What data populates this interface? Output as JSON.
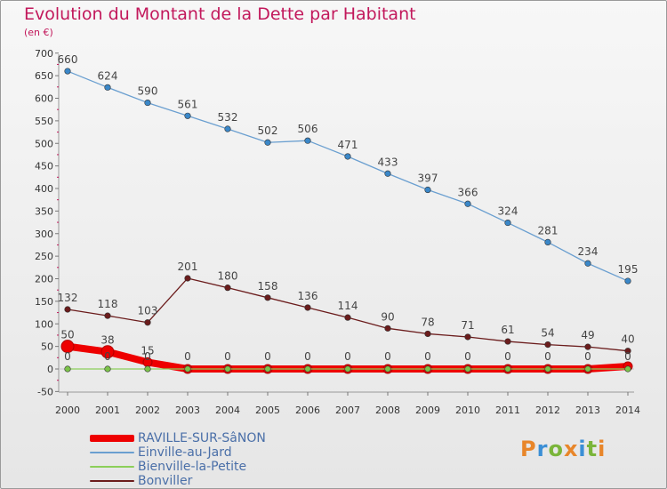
{
  "title": "Evolution du Montant de la Dette par Habitant",
  "unit": "(en €)",
  "logo_text": "Proxiti",
  "chart_data": {
    "type": "line",
    "title": "Evolution du Montant de la Dette par Habitant",
    "ylabel": "(en €)",
    "xlabel": "",
    "x": [
      "2000",
      "2001",
      "2002",
      "2003",
      "2004",
      "2005",
      "2006",
      "2007",
      "2008",
      "2009",
      "2010",
      "2011",
      "2012",
      "2013",
      "2014"
    ],
    "ylim": [
      -50,
      700
    ],
    "yticks": [
      -50,
      0,
      50,
      100,
      150,
      200,
      250,
      300,
      350,
      400,
      450,
      500,
      550,
      600,
      650,
      700
    ],
    "grid": false,
    "legend_position": "bottom-left",
    "series": [
      {
        "name": "RAVILLE-SUR-SâNON",
        "color": "#ee0000",
        "marker_color": "#ee0000",
        "thick": true,
        "values": [
          50,
          38,
          15,
          0,
          0,
          0,
          0,
          0,
          0,
          0,
          0,
          0,
          0,
          0,
          6
        ],
        "labels": [
          "50",
          "38",
          "15",
          "",
          "",
          "",
          "",
          "",
          "",
          "",
          "",
          "",
          "",
          "",
          ""
        ]
      },
      {
        "name": "Einville-au-Jard",
        "color": "#6a9fd0",
        "marker_color": "#3a87c8",
        "thick": false,
        "values": [
          660,
          624,
          590,
          561,
          532,
          502,
          506,
          471,
          433,
          397,
          366,
          324,
          281,
          234,
          195
        ],
        "labels": [
          "660",
          "624",
          "590",
          "561",
          "532",
          "502",
          "506",
          "471",
          "433",
          "397",
          "366",
          "324",
          "281",
          "234",
          "195"
        ]
      },
      {
        "name": "Bienville-la-Petite",
        "color": "#8ccf5a",
        "marker_color": "#7cc34a",
        "thick": false,
        "values": [
          0,
          0,
          0,
          0,
          0,
          0,
          0,
          0,
          0,
          0,
          0,
          0,
          0,
          0,
          0
        ],
        "labels": [
          "0",
          "0",
          "0",
          "0",
          "0",
          "0",
          "0",
          "0",
          "0",
          "0",
          "0",
          "0",
          "0",
          "0",
          "0"
        ]
      },
      {
        "name": "Bonviller",
        "color": "#6b1c1c",
        "marker_color": "#6b1c1c",
        "thick": false,
        "values": [
          132,
          118,
          103,
          201,
          180,
          158,
          136,
          114,
          90,
          78,
          71,
          61,
          54,
          49,
          40
        ],
        "labels": [
          "132",
          "118",
          "103",
          "201",
          "180",
          "158",
          "136",
          "114",
          "90",
          "78",
          "71",
          "61",
          "54",
          "49",
          "40"
        ]
      }
    ]
  }
}
